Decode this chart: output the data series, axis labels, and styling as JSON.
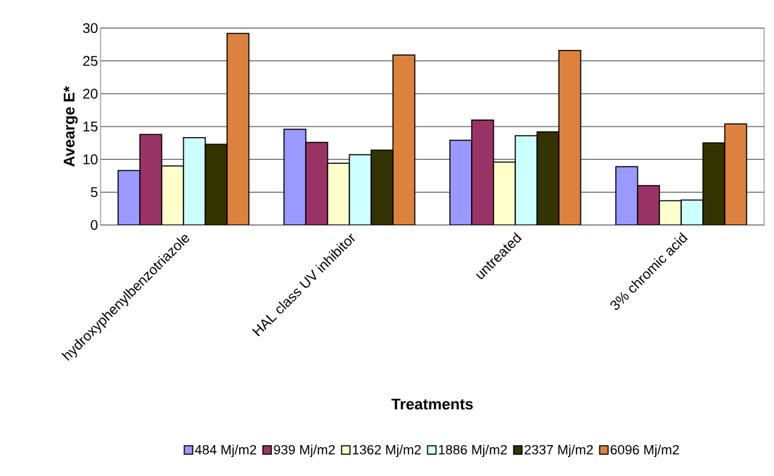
{
  "chart_data": {
    "type": "bar",
    "xlabel": "Treatments",
    "ylabel": "Avearge E*",
    "categories": [
      "hydroxyphenylbenzotriazole",
      "HAL class UV inhibitor",
      "untreated",
      "3% chromic acid"
    ],
    "series": [
      {
        "name": "484 Mj/m2",
        "color": "#9999ff",
        "values": [
          8.3,
          14.6,
          12.9,
          8.9
        ]
      },
      {
        "name": "939 Mj/m2",
        "color": "#993366",
        "values": [
          13.8,
          12.6,
          16.0,
          6.0
        ]
      },
      {
        "name": "1362 Mj/m2",
        "color": "#ffffcc",
        "values": [
          9.0,
          9.4,
          9.6,
          3.7
        ]
      },
      {
        "name": "1886 Mj/m2",
        "color": "#ccffff",
        "values": [
          13.3,
          10.7,
          13.6,
          3.8
        ]
      },
      {
        "name": "2337 Mj/m2",
        "color": "#333300",
        "values": [
          12.3,
          11.4,
          14.2,
          12.5
        ]
      },
      {
        "name": "6096 Mj/m2",
        "color": "#dc823e",
        "values": [
          29.2,
          25.9,
          26.6,
          15.4
        ]
      }
    ],
    "ylim": [
      0,
      30
    ],
    "yticks": [
      0,
      5,
      10,
      15,
      20,
      25,
      30
    ],
    "grid": "y",
    "legend": "bottom"
  }
}
